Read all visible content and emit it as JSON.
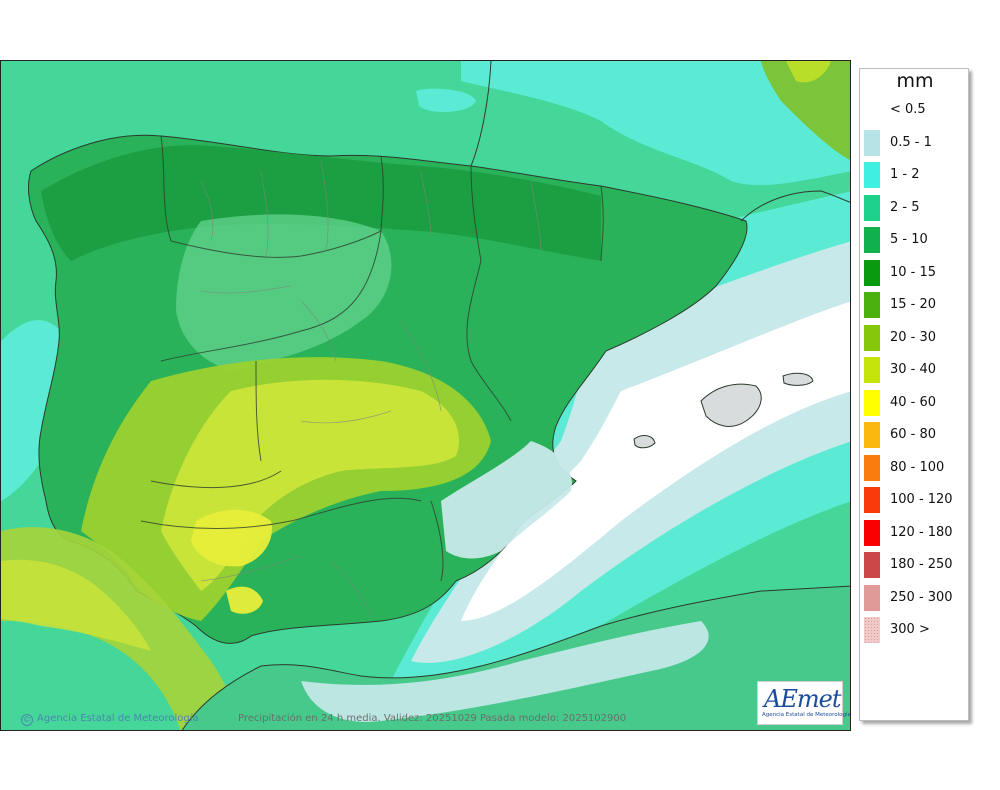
{
  "footer": {
    "credit": "Agencia Estatal de Meteorología",
    "caption": "Precipitación en 24 h media. Validez: 20251029 Pasada modelo: 2025102900"
  },
  "logo": {
    "wordmark": "AEmet",
    "subtitle": "Agencia Estatal de Meteorología"
  },
  "legend": {
    "title": "mm",
    "classes": [
      {
        "label": "< 0.5",
        "color": "#ffffff"
      },
      {
        "label": "0.5 - 1",
        "color": "#b6e3e6"
      },
      {
        "label": "1 - 2",
        "color": "#3ff0e0"
      },
      {
        "label": "2 - 5",
        "color": "#1ed28c"
      },
      {
        "label": "5 - 10",
        "color": "#10b04c"
      },
      {
        "label": "10 - 15",
        "color": "#0a9a10"
      },
      {
        "label": "15 - 20",
        "color": "#4bb10f"
      },
      {
        "label": "20 - 30",
        "color": "#86c70b"
      },
      {
        "label": "30 - 40",
        "color": "#c4e40a"
      },
      {
        "label": "40 - 60",
        "color": "#ffff00"
      },
      {
        "label": "60 - 80",
        "color": "#fbb80e"
      },
      {
        "label": "80 - 100",
        "color": "#fa7c0c"
      },
      {
        "label": "100 - 120",
        "color": "#fb3a0b"
      },
      {
        "label": "120 - 180",
        "color": "#fb0000"
      },
      {
        "label": "180 - 250",
        "color": "#cc4848"
      },
      {
        "label": "250 - 300",
        "color": "#e09a98"
      },
      {
        "label": "300 >",
        "color": "#f1caca"
      }
    ]
  }
}
